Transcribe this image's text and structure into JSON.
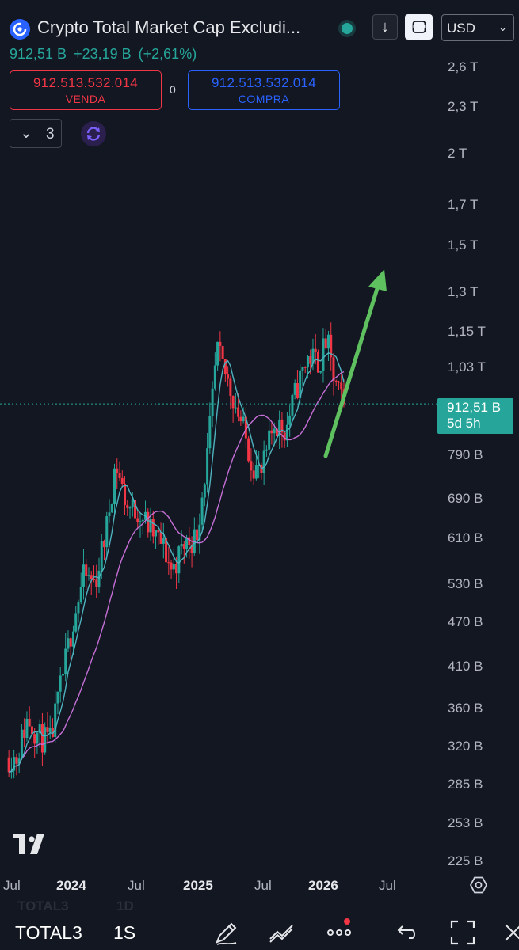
{
  "header": {
    "title": "Crypto Total Market Cap Excludi...",
    "price": "912,51 B",
    "change": "+23,19 B",
    "change_pct": "(+2,61%)",
    "currency": "USD",
    "icons": [
      "crypto-logo-icon",
      "status-dot-icon",
      "download-arrow-icon",
      "compare-icon",
      "chevron-down-icon"
    ]
  },
  "trade": {
    "sell_value": "912.513.532.014",
    "sell_label": "VENDA",
    "spread": "0",
    "buy_value": "912.513.532.014",
    "buy_label": "COMPRA"
  },
  "indicators": {
    "count": "3"
  },
  "current_price": {
    "value": "912,51 B",
    "countdown": "5d 5h"
  },
  "price_axis": [
    "2,6 T",
    "2,3 T",
    "2 T",
    "1,7 T",
    "1,5 T",
    "1,3 T",
    "1,15 T",
    "1,03 T",
    "790 B",
    "690 B",
    "610 B",
    "530 B",
    "470 B",
    "410 B",
    "360 B",
    "320 B",
    "285 B",
    "253 B",
    "225 B"
  ],
  "time_axis": [
    "Jul",
    "2024",
    "Jul",
    "2025",
    "Jul",
    "2026",
    "Jul"
  ],
  "toolbar": {
    "symbol": "TOTAL3",
    "interval": "1S",
    "ghost_symbol": "TOTAL3",
    "ghost_interval": "1D"
  },
  "colors": {
    "up": "#26a69a",
    "down": "#f23645",
    "ma_fast": "#4fb3bf",
    "ma_slow": "#c56fd6",
    "arrow": "#5fc05f",
    "background": "#131722"
  },
  "chart_data": {
    "type": "candlestick",
    "interval": "1W",
    "scale": "log",
    "x_range": [
      "2023-05",
      "2026-08"
    ],
    "y_range": [
      210,
      2800
    ],
    "y_unit": "B USD",
    "last_price": 912.51,
    "keyframes": [
      {
        "date": "2023-06-15",
        "close": 300
      },
      {
        "date": "2023-07-15",
        "close": 340
      },
      {
        "date": "2023-08-15",
        "close": 320
      },
      {
        "date": "2023-09-15",
        "close": 315
      },
      {
        "date": "2023-10-15",
        "close": 380
      },
      {
        "date": "2023-11-15",
        "close": 460
      },
      {
        "date": "2023-12-15",
        "close": 530
      },
      {
        "date": "2024-01-15",
        "close": 520
      },
      {
        "date": "2024-02-15",
        "close": 620
      },
      {
        "date": "2024-03-10",
        "close": 760
      },
      {
        "date": "2024-04-10",
        "close": 660
      },
      {
        "date": "2024-05-15",
        "close": 650
      },
      {
        "date": "2024-06-15",
        "close": 610
      },
      {
        "date": "2024-07-15",
        "close": 585
      },
      {
        "date": "2024-08-10",
        "close": 540
      },
      {
        "date": "2024-09-15",
        "close": 590
      },
      {
        "date": "2024-10-15",
        "close": 600
      },
      {
        "date": "2024-11-15",
        "close": 780
      },
      {
        "date": "2024-12-10",
        "close": 1080
      },
      {
        "date": "2025-01-15",
        "close": 960
      },
      {
        "date": "2025-02-15",
        "close": 860
      },
      {
        "date": "2025-03-15",
        "close": 760
      },
      {
        "date": "2025-04-10",
        "close": 730
      },
      {
        "date": "2025-05-15",
        "close": 860
      },
      {
        "date": "2025-06-15",
        "close": 840
      },
      {
        "date": "2025-07-15",
        "close": 960
      },
      {
        "date": "2025-08-15",
        "close": 1060
      },
      {
        "date": "2025-09-15",
        "close": 1040
      },
      {
        "date": "2025-10-05",
        "close": 1120
      },
      {
        "date": "2025-10-20",
        "close": 1000
      },
      {
        "date": "2025-11-10",
        "close": 930
      },
      {
        "date": "2025-11-20",
        "close": 912.51
      }
    ]
  }
}
